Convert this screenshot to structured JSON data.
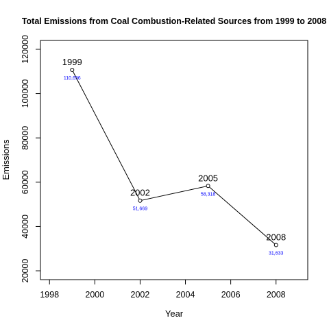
{
  "chart_data": {
    "type": "line",
    "title": "Total Emissions from Coal Combustion-Related Sources from 1999 to 2008",
    "xlabel": "Year",
    "ylabel": "Emissions",
    "xlim": [
      1997.6,
      2009.4
    ],
    "ylim": [
      16000,
      124000
    ],
    "x_ticks": [
      1998,
      2000,
      2002,
      2004,
      2006,
      2008
    ],
    "y_ticks": [
      20000,
      40000,
      60000,
      80000,
      100000,
      120000
    ],
    "grid": false,
    "series": [
      {
        "x": [
          1999,
          2002,
          2005,
          2008
        ],
        "values": [
          110696,
          51669,
          58318,
          31633
        ],
        "point_labels": [
          "1999",
          "2002",
          "2005",
          "2008"
        ],
        "value_labels": [
          "110,696",
          "51,669",
          "58,318",
          "31,633"
        ]
      }
    ],
    "colors": {
      "line": "#000000",
      "value_label": "#0000ff"
    }
  }
}
